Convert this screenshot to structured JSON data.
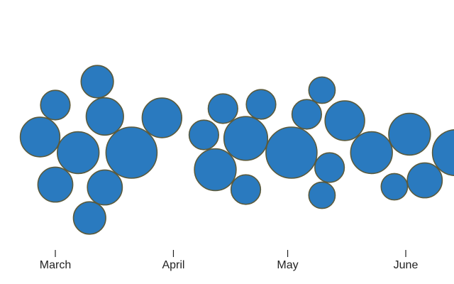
{
  "colors": {
    "bubble_fill": "#2a7abf",
    "bubble_stroke": "#5a5a3c",
    "axis": "#222222",
    "background": "#ffffff"
  },
  "chart_data": {
    "type": "scatter",
    "subtype": "beeswarm-bubble",
    "title": "",
    "xlabel": "",
    "ylabel": "",
    "x_axis_type": "date",
    "xlim": [
      "2021-02-25",
      "2021-06-30"
    ],
    "grid": false,
    "legend": "none",
    "ticks": [
      {
        "label": "March",
        "date": "2021-03-01"
      },
      {
        "label": "April",
        "date": "2021-04-01"
      },
      {
        "label": "May",
        "date": "2021-05-01"
      },
      {
        "label": "June",
        "date": "2021-06-01"
      }
    ],
    "points": [
      {
        "date": "2021-02-25",
        "size": 18
      },
      {
        "date": "2021-03-01",
        "size": 14
      },
      {
        "date": "2021-03-01",
        "size": 10
      },
      {
        "date": "2021-03-07",
        "size": 20
      },
      {
        "date": "2021-03-10",
        "size": 12
      },
      {
        "date": "2021-03-12",
        "size": 12
      },
      {
        "date": "2021-03-14",
        "size": 14
      },
      {
        "date": "2021-03-14",
        "size": 16
      },
      {
        "date": "2021-03-21",
        "size": 30
      },
      {
        "date": "2021-03-29",
        "size": 18
      },
      {
        "date": "2021-04-09",
        "size": 10
      },
      {
        "date": "2021-04-12",
        "size": 20
      },
      {
        "date": "2021-04-14",
        "size": 10
      },
      {
        "date": "2021-04-20",
        "size": 22
      },
      {
        "date": "2021-04-20",
        "size": 10
      },
      {
        "date": "2021-04-24",
        "size": 10
      },
      {
        "date": "2021-05-02",
        "size": 30
      },
      {
        "date": "2021-05-06",
        "size": 10
      },
      {
        "date": "2021-05-10",
        "size": 8
      },
      {
        "date": "2021-05-10",
        "size": 8
      },
      {
        "date": "2021-05-12",
        "size": 10
      },
      {
        "date": "2021-05-16",
        "size": 18
      },
      {
        "date": "2021-05-23",
        "size": 20
      },
      {
        "date": "2021-05-29",
        "size": 8
      },
      {
        "date": "2021-06-02",
        "size": 20
      },
      {
        "date": "2021-06-06",
        "size": 14
      },
      {
        "date": "2021-06-14",
        "size": 24
      }
    ]
  }
}
